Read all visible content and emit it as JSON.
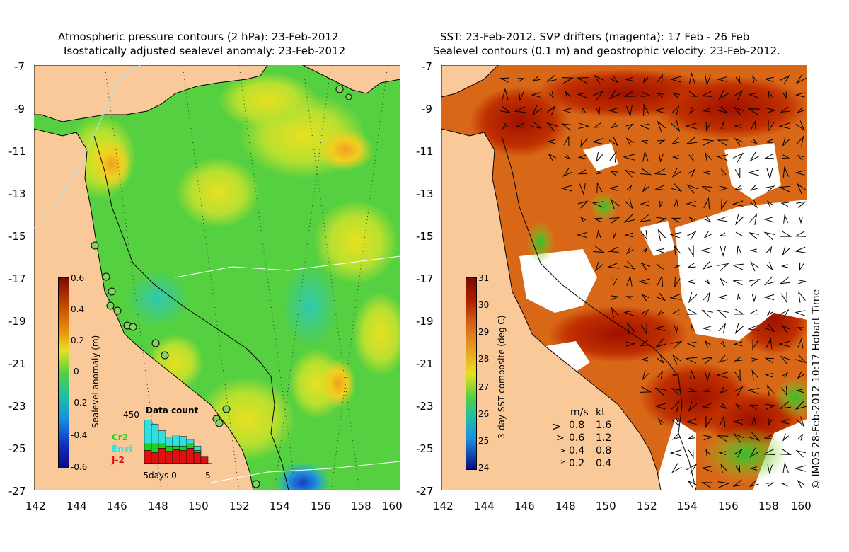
{
  "left_panel": {
    "title_line1": "Atmospheric pressure contours (2 hPa): 23-Feb-2012",
    "title_line2": "Isostatically adjusted sealevel anomaly: 23-Feb-2012",
    "colorbar": {
      "label": "Sealevel anomaly (m)",
      "ticks": [
        "0.6",
        "0.4",
        "0.2",
        "0",
        "-0.2",
        "-0.4",
        "-0.6"
      ]
    },
    "inset": {
      "title": "Data count",
      "ymax_label": "450",
      "legend": [
        {
          "name": "Cr2",
          "color": "#20d020"
        },
        {
          "name": "Envi",
          "color": "#30e0e0"
        },
        {
          "name": "J-2",
          "color": "#e01010"
        }
      ],
      "xlabel": "-5days 0",
      "xmax_label": "5",
      "bars": [
        {
          "j2": 0.3,
          "envi": 0.55,
          "cr2": 0.15
        },
        {
          "j2": 0.25,
          "envi": 0.45,
          "cr2": 0.2
        },
        {
          "j2": 0.35,
          "envi": 0.3,
          "cr2": 0.1
        },
        {
          "j2": 0.28,
          "envi": 0.2,
          "cr2": 0.12
        },
        {
          "j2": 0.32,
          "envi": 0.25,
          "cr2": 0.08
        },
        {
          "j2": 0.3,
          "envi": 0.22,
          "cr2": 0.1
        },
        {
          "j2": 0.35,
          "envi": 0.1,
          "cr2": 0.1
        },
        {
          "j2": 0.25,
          "envi": 0.1,
          "cr2": 0.05
        },
        {
          "j2": 0.15,
          "envi": 0.0,
          "cr2": 0.0
        }
      ]
    }
  },
  "right_panel": {
    "title_line1": "SST: 23-Feb-2012. SVP drifters (magenta): 17 Feb - 26 Feb",
    "title_line2": "Sealevel contours (0.1 m) and geostrophic velocity: 23-Feb-2012.",
    "colorbar": {
      "label": "3-day SST composite (deg C)",
      "ticks": [
        "31",
        "30",
        "29",
        "28",
        "27",
        "26",
        "25",
        "24"
      ]
    },
    "velocity_key": {
      "header_ms": "m/s",
      "header_kt": "kt",
      "rows": [
        {
          "ms": "0.8",
          "kt": "1.6"
        },
        {
          "ms": "0.6",
          "kt": "1.2"
        },
        {
          "ms": "0.4",
          "kt": "0.8"
        },
        {
          "ms": "0.2",
          "kt": "0.4"
        }
      ]
    }
  },
  "axes": {
    "y_ticks": [
      "-7",
      "-9",
      "-11",
      "-13",
      "-15",
      "-17",
      "-19",
      "-21",
      "-23",
      "-25",
      "-27"
    ],
    "x_ticks": [
      "142",
      "144",
      "146",
      "148",
      "150",
      "152",
      "154",
      "156",
      "158",
      "160"
    ]
  },
  "credit": "© IMOS 28-Feb-2012 10:17 Hobart Time",
  "colors": {
    "land": "#f9c99a",
    "sst_warm": "#b01800",
    "sla_green": "#33cc33"
  }
}
